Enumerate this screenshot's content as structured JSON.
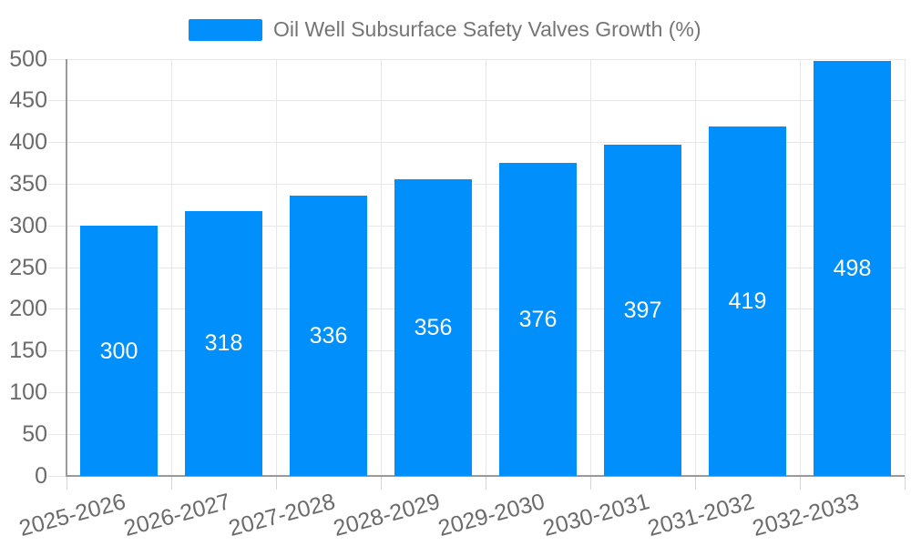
{
  "chart_data": {
    "type": "bar",
    "title": "",
    "categories": [
      "2025-2026",
      "2026-2027",
      "2027-2028",
      "2028-2029",
      "2029-2030",
      "2030-2031",
      "2031-2032",
      "2032-2033"
    ],
    "series": [
      {
        "name": "Oil Well Subsurface Safety Valves Growth (%)",
        "values": [
          300,
          318,
          336,
          356,
          376,
          397,
          419,
          498
        ]
      }
    ],
    "data_labels": [
      "300",
      "318",
      "336",
      "356",
      "376",
      "397",
      "419",
      "498"
    ],
    "xlabel": "",
    "ylabel": "",
    "ylim": [
      0,
      500
    ],
    "yticks": [
      0,
      50,
      100,
      150,
      200,
      250,
      300,
      350,
      400,
      450,
      500
    ],
    "grid": true,
    "legend_position": "top",
    "colors": {
      "bar": "#008FFB",
      "gridline": "#e7e7e7",
      "tick": "#d6d6d6",
      "axis_line": "#9a9a9a",
      "axis_text": "#6b6b6b",
      "legend_text": "#757575",
      "data_label_text": "#ffffff",
      "background": "#ffffff"
    }
  }
}
